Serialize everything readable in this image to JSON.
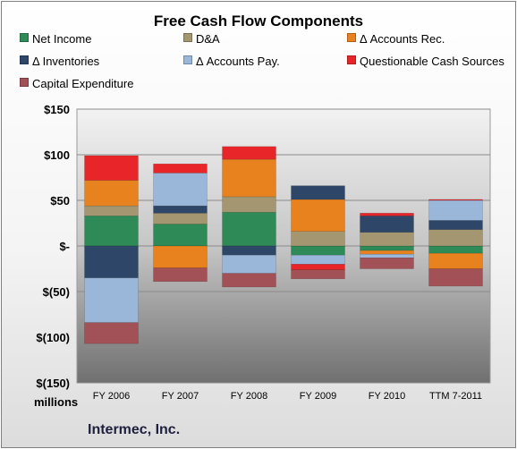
{
  "chart_data": {
    "type": "bar",
    "stacked": true,
    "title": "Free Cash Flow Components",
    "units_label": "millions",
    "company": "Intermec, Inc.",
    "categories": [
      "FY 2006",
      "FY 2007",
      "FY 2008",
      "FY 2009",
      "FY 2010",
      "TTM 7-2011"
    ],
    "ylim": [
      -150,
      150
    ],
    "yticks": [
      150,
      100,
      50,
      0,
      -50,
      -100,
      -150
    ],
    "ytick_labels": [
      "$150",
      "$100",
      "$50",
      "$-",
      "$(50)",
      "$(100)",
      "$(150)"
    ],
    "grid": true,
    "legend_position": "top",
    "series": [
      {
        "name": "Net Income",
        "color": "#2e8b57",
        "values": [
          33,
          24,
          37,
          -10,
          -5,
          -8
        ]
      },
      {
        "name": "D&A",
        "color": "#a39670",
        "values": [
          11,
          12,
          17,
          16,
          15,
          18
        ]
      },
      {
        "name": "Δ Accounts Rec.",
        "color": "#e8821e",
        "values": [
          28,
          -24,
          41,
          35,
          -4,
          -17
        ]
      },
      {
        "name": "Δ Inventories",
        "color": "#2e4768",
        "values": [
          -35,
          8,
          -10,
          15,
          18,
          10
        ]
      },
      {
        "name": "Δ Accounts Pay.",
        "color": "#9ab6d8",
        "values": [
          -49,
          36,
          -20,
          -10,
          -4,
          22
        ]
      },
      {
        "name": "Questionable Cash Sources",
        "color": "#e8262a",
        "values": [
          27,
          10,
          14,
          -6,
          3,
          1
        ]
      },
      {
        "name": "Capital Expenditure",
        "color": "#a25156",
        "values": [
          -23,
          -15,
          -15,
          -10,
          -12,
          -19
        ]
      }
    ]
  }
}
